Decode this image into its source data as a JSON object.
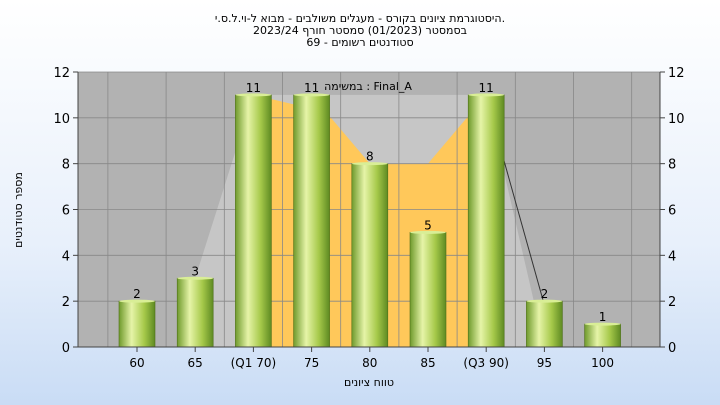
{
  "chart_data": {
    "type": "bar",
    "title_lines": [
      "היסטוגרמת ציונים בקורס - מעגלים משולבים - מבוא ל-וי.ל.ס.י.",
      "בסמסטר  (01/2023)  סמסטר חורף 2023/24",
      "סטודנטים רשומים - 69"
    ],
    "inner_label": "במשימה : Final_A",
    "categories": [
      "60",
      "65",
      "(Q1 70)",
      "75",
      "80",
      "85",
      "(Q3 90)",
      "95",
      "100"
    ],
    "values": [
      2,
      3,
      11,
      11,
      8,
      5,
      11,
      2,
      1
    ],
    "xlabel": "טווח ציונים",
    "ylabel": "מספר סטודנטים",
    "ylim": [
      0,
      12
    ],
    "yticks": [
      0,
      2,
      4,
      6,
      8,
      10,
      12
    ],
    "grid": true,
    "colors": {
      "plot_bg": "#b2b2b2",
      "iqr_band": "#ffc85a",
      "outer_band": "#c6c6c6",
      "bar_light": "#e6f4a8",
      "bar_mid": "#a6c94a",
      "bar_dark": "#5e8a22"
    }
  }
}
